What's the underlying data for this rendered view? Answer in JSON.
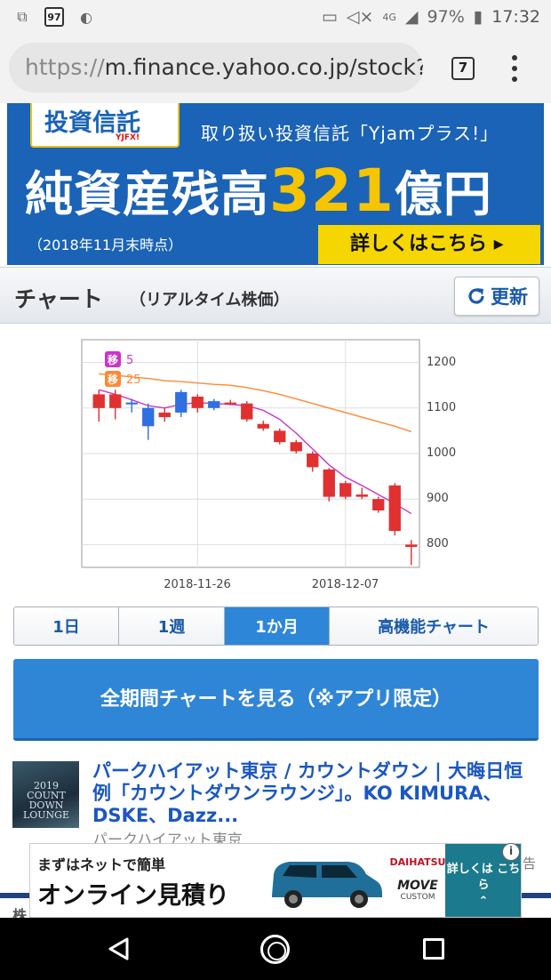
{
  "status_bar": {
    "battery": "97%",
    "time": "17:32",
    "network": "4G",
    "notif_box": "97"
  },
  "browser": {
    "url_proto": "https://",
    "url_rest": "m.finance.yahoo.co.jp/stock?",
    "tab_count": "7"
  },
  "banner": {
    "logo": "投資信託",
    "logo_sub": "YJFX!",
    "subtitle": "取り扱い投資信託「Yjamプラス!」",
    "main_before": "純資産残高",
    "main_number": "321",
    "main_after": "億円",
    "date_note": "（2018年11月末時点）",
    "cta": "詳しくはこちら ▸"
  },
  "chart_section": {
    "title": "チャート",
    "subtitle": "（リアルタイム株価）",
    "refresh_label": "更新"
  },
  "chart_data": {
    "type": "candlestick",
    "y_ticks": [
      "1200",
      "1100",
      "1000",
      "900",
      "800"
    ],
    "ylim": [
      750,
      1250
    ],
    "x_ticks": [
      "2018-11-26",
      "2018-12-07"
    ],
    "legend": [
      {
        "badge": "移",
        "period": "5",
        "color": "#cc33cc"
      },
      {
        "badge": "移",
        "period": "25",
        "color": "#ff8833"
      }
    ],
    "candles": [
      {
        "open": 1100,
        "high": 1140,
        "low": 1070,
        "close": 1130,
        "dir": "down"
      },
      {
        "open": 1130,
        "high": 1140,
        "low": 1075,
        "close": 1100,
        "dir": "down"
      },
      {
        "open": 1108,
        "high": 1120,
        "low": 1090,
        "close": 1112,
        "dir": "up"
      },
      {
        "open": 1060,
        "high": 1110,
        "low": 1030,
        "close": 1100,
        "dir": "up"
      },
      {
        "open": 1080,
        "high": 1100,
        "low": 1070,
        "close": 1090,
        "dir": "down"
      },
      {
        "open": 1090,
        "high": 1140,
        "low": 1080,
        "close": 1135,
        "dir": "up"
      },
      {
        "open": 1125,
        "high": 1130,
        "low": 1090,
        "close": 1100,
        "dir": "down"
      },
      {
        "open": 1100,
        "high": 1120,
        "low": 1095,
        "close": 1115,
        "dir": "up"
      },
      {
        "open": 1112,
        "high": 1118,
        "low": 1106,
        "close": 1110,
        "dir": "down"
      },
      {
        "open": 1110,
        "high": 1115,
        "low": 1070,
        "close": 1075,
        "dir": "down"
      },
      {
        "open": 1065,
        "high": 1072,
        "low": 1050,
        "close": 1055,
        "dir": "down"
      },
      {
        "open": 1050,
        "high": 1055,
        "low": 1020,
        "close": 1025,
        "dir": "down"
      },
      {
        "open": 1025,
        "high": 1030,
        "low": 1000,
        "close": 1005,
        "dir": "down"
      },
      {
        "open": 1000,
        "high": 1005,
        "low": 960,
        "close": 970,
        "dir": "down"
      },
      {
        "open": 965,
        "high": 968,
        "low": 895,
        "close": 905,
        "dir": "down"
      },
      {
        "open": 935,
        "high": 940,
        "low": 900,
        "close": 905,
        "dir": "down"
      },
      {
        "open": 910,
        "high": 925,
        "low": 900,
        "close": 905,
        "dir": "down"
      },
      {
        "open": 900,
        "high": 905,
        "low": 870,
        "close": 875,
        "dir": "down"
      },
      {
        "open": 930,
        "high": 935,
        "low": 820,
        "close": 830,
        "dir": "down"
      },
      {
        "open": 800,
        "high": 810,
        "low": 755,
        "close": 795,
        "dir": "down"
      }
    ],
    "ma5": [
      1140,
      1130,
      1118,
      1105,
      1100,
      1108,
      1112,
      1110,
      1108,
      1105,
      1095,
      1075,
      1045,
      1010,
      975,
      948,
      930,
      910,
      890,
      868
    ],
    "ma25": [
      1175,
      1172,
      1168,
      1165,
      1160,
      1158,
      1155,
      1152,
      1150,
      1145,
      1138,
      1130,
      1120,
      1110,
      1100,
      1090,
      1080,
      1070,
      1060,
      1048
    ]
  },
  "period_tabs": [
    {
      "label": "1日",
      "active": false
    },
    {
      "label": "1週",
      "active": false
    },
    {
      "label": "1か月",
      "active": true
    },
    {
      "label": "高機能チャート",
      "active": false
    }
  ],
  "full_chart_button": "全期間チャートを見る（※アプリ限定）",
  "news": {
    "thumb_text": "2019 COUNT DOWN LOUNGE",
    "title": "パークハイアット東京 / カウントダウン | 大晦日恒例「カウントダウンラウンジ」。KO KIMURA、DSKE、Dazz...",
    "source": "パークハイアット東京"
  },
  "ad": {
    "line1": "まずはネットで簡単",
    "line2": "オンライン見積り",
    "brand": "DAIHATSU",
    "model": "MOVE",
    "model_sub": "CUSTOM",
    "cta": "詳しくは こちら",
    "info": "i",
    "kokoku": "告",
    "peek_text": "株"
  }
}
